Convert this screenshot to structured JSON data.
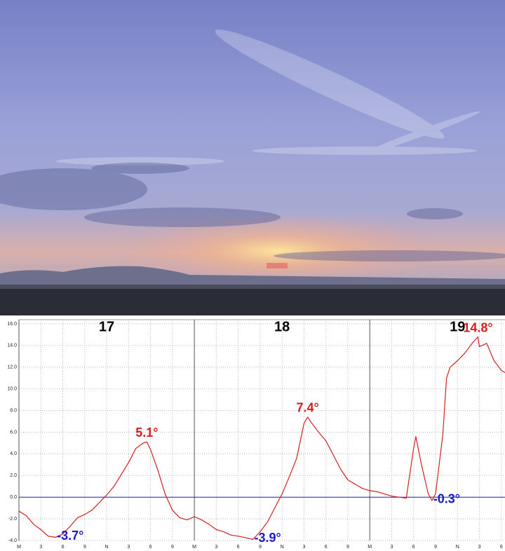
{
  "chart_data": {
    "type": "line",
    "days": [
      "17",
      "18",
      "19"
    ],
    "x": [
      0,
      1,
      2,
      3,
      4,
      5,
      6,
      7,
      8,
      9,
      10,
      11,
      12,
      13,
      14,
      15,
      16,
      17,
      17.5,
      18,
      19,
      20,
      21,
      22,
      23,
      24,
      25,
      26,
      27,
      28,
      29,
      30,
      31,
      32,
      33,
      34,
      35,
      36,
      37,
      38,
      39,
      39.5,
      40,
      41,
      42,
      43,
      44,
      45,
      46,
      47,
      48,
      49,
      50,
      51,
      52,
      53,
      53.3,
      54,
      54.3,
      55,
      56,
      56.5,
      57,
      58,
      58.5,
      59,
      60,
      61,
      62,
      62.8,
      63,
      64,
      65,
      66,
      66.5
    ],
    "series": [
      {
        "color": "#d42020",
        "values": [
          -1.3,
          -1.7,
          -2.5,
          -3.0,
          -3.6,
          -3.7,
          -3.4,
          -2.7,
          -1.9,
          -1.6,
          -1.2,
          -0.5,
          0.2,
          1.0,
          2.1,
          3.2,
          4.5,
          5.0,
          5.1,
          4.4,
          2.5,
          0.3,
          -1.2,
          -1.9,
          -2.1,
          -1.8,
          -2.1,
          -2.5,
          -3.0,
          -3.2,
          -3.5,
          -3.6,
          -3.75,
          -3.9,
          -3.2,
          -2.3,
          -1.0,
          0.3,
          1.9,
          3.6,
          6.8,
          7.4,
          6.9,
          6.0,
          5.2,
          3.9,
          2.6,
          1.6,
          1.2,
          0.8,
          0.6,
          0.5,
          0.3,
          0.1,
          0.0,
          -0.1,
          1.3,
          4.5,
          5.6,
          3.2,
          0.3,
          -0.3,
          0.3,
          5.8,
          11.0,
          12.0,
          12.6,
          13.3,
          14.2,
          14.8,
          13.9,
          14.2,
          12.6,
          11.7,
          11.5
        ]
      }
    ],
    "annotations": [
      {
        "label": "-3.7°",
        "x": 5,
        "y": -3.7,
        "color": "#1a1acc",
        "kind": "min"
      },
      {
        "label": "5.1°",
        "x": 17.5,
        "y": 5.1,
        "color": "#d42020",
        "kind": "max"
      },
      {
        "label": "-3.9°",
        "x": 32,
        "y": -3.9,
        "color": "#1a1acc",
        "kind": "min"
      },
      {
        "label": "7.4°",
        "x": 39.5,
        "y": 7.4,
        "color": "#d42020",
        "kind": "max"
      },
      {
        "label": "-0.3°",
        "x": 56.5,
        "y": -0.3,
        "color": "#1a1acc",
        "kind": "min"
      },
      {
        "label": "14.8°",
        "x": 62.8,
        "y": 14.8,
        "color": "#d42020",
        "kind": "max"
      }
    ],
    "xlim": [
      0,
      66.5
    ],
    "xticks": [
      {
        "value": 0,
        "label": "M"
      },
      {
        "value": 3,
        "label": "3"
      },
      {
        "value": 6,
        "label": "6"
      },
      {
        "value": 9,
        "label": "9"
      },
      {
        "value": 12,
        "label": "N"
      },
      {
        "value": 15,
        "label": "3"
      },
      {
        "value": 18,
        "label": "6"
      },
      {
        "value": 21,
        "label": "9"
      },
      {
        "value": 24,
        "label": "M"
      },
      {
        "value": 27,
        "label": "3"
      },
      {
        "value": 30,
        "label": "6"
      },
      {
        "value": 33,
        "label": "9"
      },
      {
        "value": 36,
        "label": "N"
      },
      {
        "value": 39,
        "label": "3"
      },
      {
        "value": 42,
        "label": "6"
      },
      {
        "value": 45,
        "label": "9"
      },
      {
        "value": 48,
        "label": "M"
      },
      {
        "value": 51,
        "label": "3"
      },
      {
        "value": 54,
        "label": "6"
      },
      {
        "value": 57,
        "label": "9"
      },
      {
        "value": 60,
        "label": "N"
      },
      {
        "value": 63,
        "label": "3"
      },
      {
        "value": 66,
        "label": "6"
      }
    ],
    "ylim": [
      -4,
      16
    ],
    "yticks": [
      {
        "value": -4,
        "label": "-4.0"
      },
      {
        "value": -2,
        "label": "-2.0"
      },
      {
        "value": 0,
        "label": "0.0"
      },
      {
        "value": 2,
        "label": "2.0"
      },
      {
        "value": 4,
        "label": "4.0"
      },
      {
        "value": 6,
        "label": "6.0"
      },
      {
        "value": 8,
        "label": "8.0"
      },
      {
        "value": 10,
        "label": "10.0"
      },
      {
        "value": 12,
        "label": "12.0"
      },
      {
        "value": 14,
        "label": "14.0"
      },
      {
        "value": 16,
        "label": "16.0"
      }
    ],
    "grid": true,
    "zero_line_color": "#2020c0"
  }
}
